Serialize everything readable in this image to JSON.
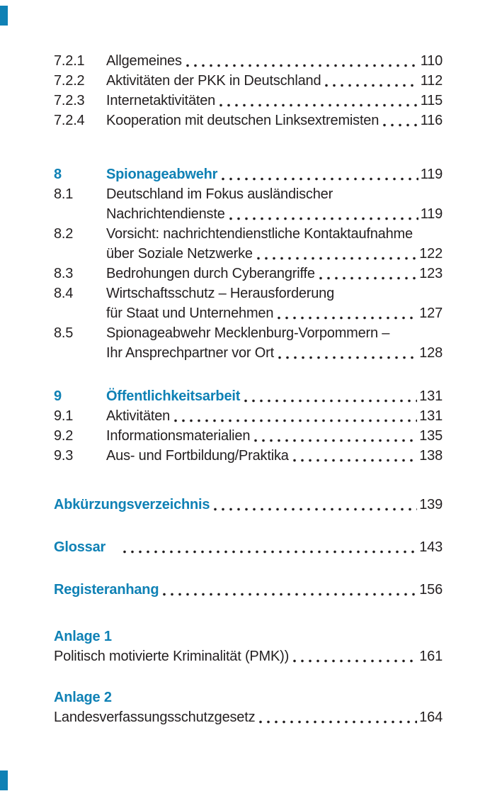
{
  "page": {
    "background": "#ffffff",
    "text_color": "#231f20",
    "accent_color": "#0f81b5",
    "edge_mark_color": "#0f81b5"
  },
  "toc": {
    "lines": [
      {
        "num": "7.2.1",
        "text": "Allgemeines",
        "page": "110",
        "style": "plain"
      },
      {
        "num": "7.2.2",
        "text": "Aktivitäten der PKK in Deutschland",
        "page": "112",
        "style": "plain"
      },
      {
        "num": "7.2.3",
        "text": "Internetaktivitäten",
        "page": "115",
        "style": "plain"
      },
      {
        "num": "7.2.4",
        "text": "Kooperation mit deutschen Linksextremisten",
        "page": "116",
        "style": "plain"
      },
      {
        "num": "8",
        "text": "Spionageabwehr",
        "page": "119",
        "style": "heading",
        "spacer": 48
      },
      {
        "num": "8.1",
        "text": "Deutschland im Fokus ausländischer",
        "page": "",
        "style": "plain"
      },
      {
        "num": "",
        "text": "Nachrichtendienste",
        "page": "119",
        "style": "plain"
      },
      {
        "num": "8.2",
        "text": "Vorsicht: nachrichtendienstliche Kontaktaufnahme",
        "page": "",
        "style": "plain"
      },
      {
        "num": "",
        "text": "über Soziale Netzwerke",
        "page": "122",
        "style": "plain"
      },
      {
        "num": "8.3",
        "text": "Bedrohungen durch Cyberangriffe",
        "page": "123",
        "style": "plain"
      },
      {
        "num": "8.4",
        "text": "Wirtschaftsschutz – Herausforderung",
        "page": "",
        "style": "plain"
      },
      {
        "num": "",
        "text": "für Staat und Unternehmen",
        "page": "127",
        "style": "plain"
      },
      {
        "num": "8.5",
        "text": "Spionageabwehr Mecklenburg-Vorpommern –",
        "page": "",
        "style": "plain"
      },
      {
        "num": "",
        "text": "Ihr Ansprechpartner vor Ort",
        "page": "128",
        "style": "plain"
      },
      {
        "num": "9",
        "text": "Öffentlichkeitsarbeit",
        "page": "131",
        "style": "heading",
        "spacer": 33
      },
      {
        "num": "9.1",
        "text": "Aktivitäten",
        "page": "131",
        "style": "plain"
      },
      {
        "num": "9.2",
        "text": "Informationsmaterialien",
        "page": "135",
        "style": "plain"
      },
      {
        "num": "9.3",
        "text": "Aus- und Fortbildung/Praktika",
        "page": "138",
        "style": "plain"
      },
      {
        "num": "",
        "text": "Abkürzungsverzeichnis",
        "page": "139",
        "style": "backmatter",
        "spacer": 41
      },
      {
        "num": "",
        "text": "Glossar",
        "page": "143",
        "style": "backmatter",
        "spacer": 32,
        "leader_indent": 22
      },
      {
        "num": "",
        "text": "Registeranhang",
        "page": "156",
        "style": "backmatter",
        "spacer": 32
      },
      {
        "num": "",
        "text": "Anlage 1",
        "page": "",
        "style": "anlage-heading",
        "spacer": 38
      },
      {
        "num": "",
        "text": "Politisch motivierte Kriminalität (PMK))",
        "page": "161",
        "style": "anlage-body"
      },
      {
        "num": "",
        "text": "Anlage 2",
        "page": "",
        "style": "anlage-heading",
        "spacer": 30
      },
      {
        "num": "",
        "text": "Landesverfassungsschutzgesetz",
        "page": "164",
        "style": "anlage-body"
      }
    ]
  }
}
